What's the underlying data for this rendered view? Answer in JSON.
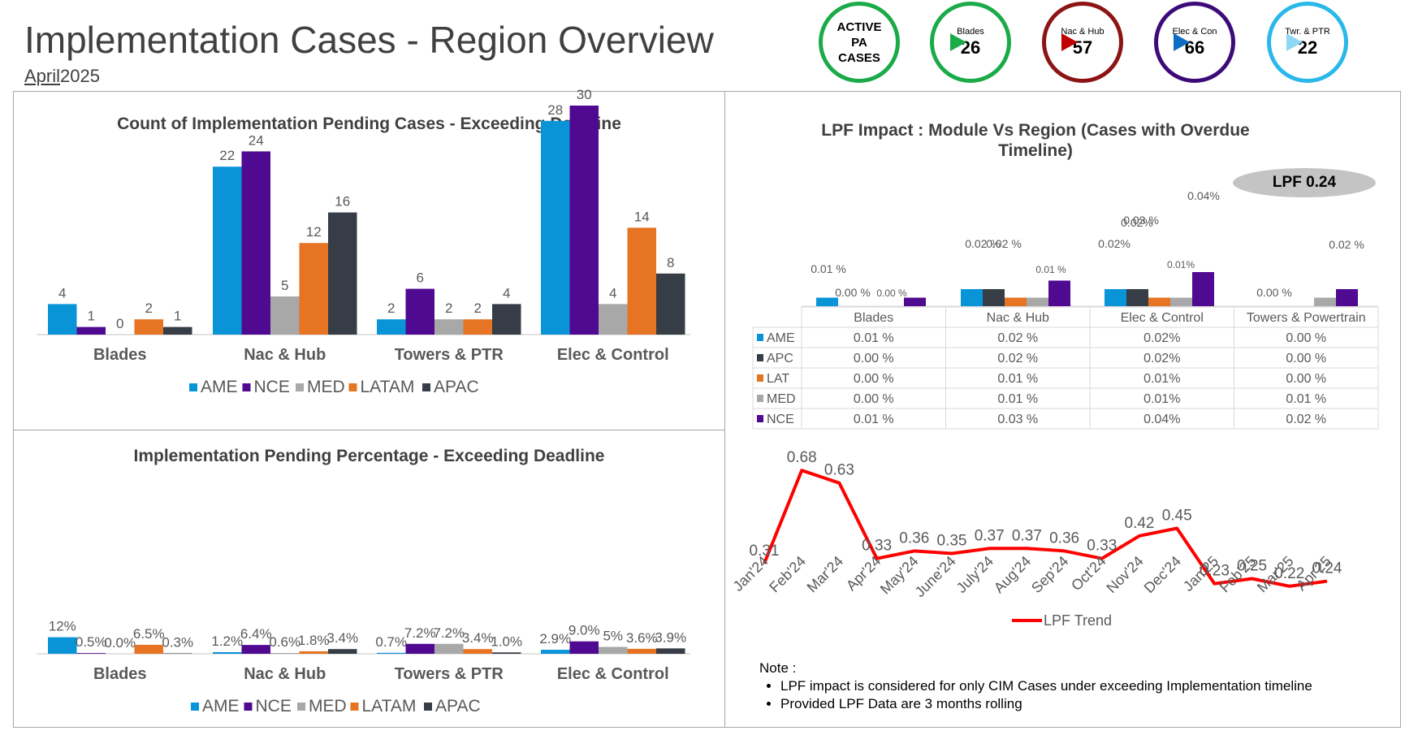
{
  "header": {
    "title": "Implementation Cases - Region Overview",
    "date_month": "April",
    "date_year": "2025"
  },
  "kpis": [
    {
      "label_lines": [
        "ACTIVE",
        "PA",
        "CASES"
      ],
      "value": "",
      "color": "#1aab48"
    },
    {
      "label_lines": [
        "Blades"
      ],
      "value": "26",
      "color": "#1aab48"
    },
    {
      "label_lines": [
        "Nac & Hub"
      ],
      "value": "57",
      "color": "#8c1414"
    },
    {
      "label_lines": [
        "Elec & Con"
      ],
      "value": "66",
      "color": "#3d0b79"
    },
    {
      "label_lines": [
        "Twr. & PTR"
      ],
      "value": "22",
      "color": "#2ab8ea"
    }
  ],
  "arrows": [
    "#1aab48",
    "#c00000",
    "#0c6cc4",
    "#8fd8f5"
  ],
  "colors": {
    "AME": "#0a94d8",
    "NCE": "#4f0a91",
    "MED": "#a8a8a8",
    "LATAM": "#e67422",
    "APAC": "#363d47",
    "LPF": "#ff0000"
  },
  "chart_data": [
    {
      "type": "bar",
      "title": "Count of Implementation Pending Cases - Exceeding Deadline",
      "categories": [
        "Blades",
        "Nac & Hub",
        "Towers & PTR",
        "Elec & Control"
      ],
      "series": [
        {
          "name": "AME",
          "values": [
            4,
            22,
            2,
            28
          ]
        },
        {
          "name": "NCE",
          "values": [
            1,
            24,
            6,
            30
          ]
        },
        {
          "name": "MED",
          "values": [
            0,
            5,
            2,
            4
          ]
        },
        {
          "name": "LATAM",
          "values": [
            2,
            12,
            2,
            14
          ]
        },
        {
          "name": "APAC",
          "values": [
            1,
            16,
            4,
            8
          ]
        }
      ],
      "legend": "bottom"
    },
    {
      "type": "bar",
      "title": "Implementation Pending Percentage - Exceeding Deadline",
      "categories": [
        "Blades",
        "Nac & Hub",
        "Towers & PTR",
        "Elec & Control"
      ],
      "series": [
        {
          "name": "AME",
          "values": [
            12,
            1.2,
            0.7,
            2.9
          ],
          "labels": [
            "12%",
            "1.2%",
            "0.7%",
            "2.9%"
          ]
        },
        {
          "name": "NCE",
          "values": [
            0.5,
            6.4,
            7.2,
            9.0
          ],
          "labels": [
            "0.5%",
            "6.4%",
            "7.2%",
            "9.0%"
          ]
        },
        {
          "name": "MED",
          "values": [
            0.0,
            0.6,
            7.2,
            5
          ],
          "labels": [
            "0.0%",
            "0.6%",
            "7.2%",
            "5%"
          ]
        },
        {
          "name": "LATAM",
          "values": [
            6.5,
            1.8,
            3.4,
            3.6
          ],
          "labels": [
            "6.5%",
            "1.8%",
            "3.4%",
            "3.6%"
          ]
        },
        {
          "name": "APAC",
          "values": [
            0.3,
            3.4,
            1.0,
            3.9
          ],
          "labels": [
            "0.3%",
            "3.4%",
            "1.0%",
            "3.9%"
          ]
        }
      ],
      "legend": "bottom"
    },
    {
      "type": "bar",
      "title": "LPF Impact : Module Vs Region (Cases with Overdue Timeline)",
      "badge": "LPF 0.24",
      "categories": [
        "Blades",
        "Nac & Hub",
        "Elec & Control",
        "Towers & Powertrain"
      ],
      "series": [
        {
          "name": "AME",
          "values": [
            0.01,
            0.02,
            0.02,
            0.0
          ],
          "labels": [
            "0.01 %",
            "0.02 %",
            "0.02%",
            "0.00 %"
          ]
        },
        {
          "name": "APC",
          "values": [
            0.0,
            0.02,
            0.02,
            0.0
          ],
          "labels": [
            "0.00 %",
            "0.02 %",
            "0.02%",
            "0.00 %"
          ]
        },
        {
          "name": "LAT",
          "values": [
            0.0,
            0.01,
            0.01,
            0.0
          ],
          "labels": [
            "0.00 %",
            "0.01 %",
            "0.01%",
            "0.00 %"
          ]
        },
        {
          "name": "MED",
          "values": [
            0.0,
            0.01,
            0.01,
            0.01
          ],
          "labels": [
            "0.00 %",
            "0.01 %",
            "0.01%",
            "0.01 %"
          ]
        },
        {
          "name": "NCE",
          "values": [
            0.01,
            0.03,
            0.04,
            0.02
          ],
          "labels": [
            "0.01 %",
            "0.03 %",
            "0.04%",
            "0.02 %"
          ]
        }
      ],
      "legend": "table"
    },
    {
      "type": "line",
      "categories": [
        "Jan'24",
        "Feb'24",
        "Mar'24",
        "Apr'24",
        "May'24",
        "June'24",
        "July'24",
        "Aug'24",
        "Sep'24",
        "Oct'24",
        "Nov'24",
        "Dec'24",
        "Jan'25",
        "Feb'25",
        "Mar'25",
        "Apr'25"
      ],
      "series": [
        {
          "name": "LPF Trend",
          "values": [
            0.31,
            0.68,
            0.63,
            0.33,
            0.36,
            0.35,
            0.37,
            0.37,
            0.36,
            0.33,
            0.42,
            0.45,
            0.23,
            0.25,
            0.22,
            0.24
          ]
        }
      ],
      "legend": "bottom"
    }
  ],
  "note": {
    "heading": "Note :",
    "items": [
      "LPF impact is considered for only CIM Cases under exceeding Implementation timeline",
      "Provided LPF Data are 3 months rolling"
    ]
  }
}
